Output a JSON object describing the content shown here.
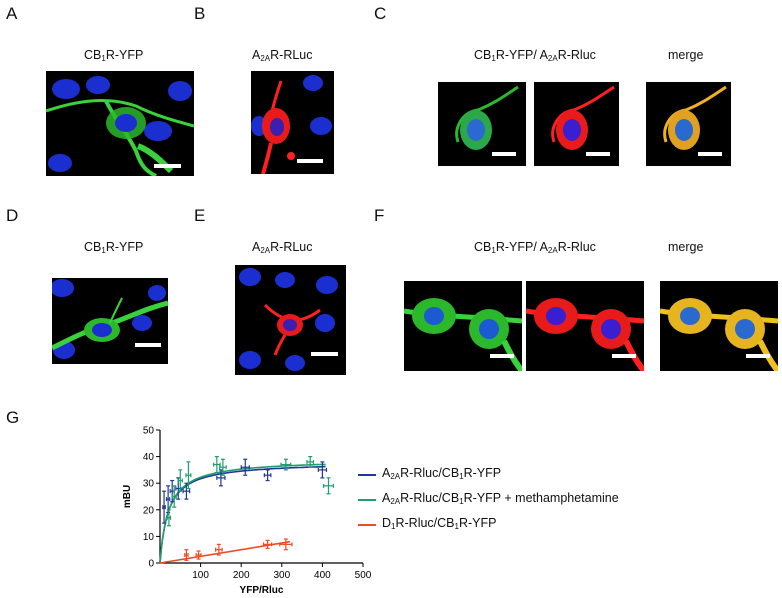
{
  "panels": {
    "A": {
      "letter": "A",
      "label": {
        "pre": "CB",
        "sub": "1",
        "post": "R-YFP"
      }
    },
    "B": {
      "letter": "B",
      "label": {
        "pre": "A",
        "sub": "2A",
        "post": "R-RLuc"
      }
    },
    "C": {
      "letter": "C",
      "label": {
        "pre1": "CB",
        "sub1": "1",
        "mid": "R-YFP/ A",
        "sub2": "2A",
        "post": "R-Rluc"
      },
      "merge": "merge"
    },
    "D": {
      "letter": "D",
      "label": {
        "pre": "CB",
        "sub": "1",
        "post": "R-YFP"
      }
    },
    "E": {
      "letter": "E",
      "label": {
        "pre": "A",
        "sub": "2A",
        "post": "R-RLuc"
      }
    },
    "F": {
      "letter": "F",
      "label": {
        "pre1": "CB",
        "sub1": "1",
        "mid": "R-YFP/ A",
        "sub2": "2A",
        "post": "R-Rluc"
      },
      "merge": "merge"
    },
    "G": {
      "letter": "G"
    }
  },
  "colors": {
    "blue": "#1f3a93",
    "green": "#1f9e6e",
    "red": "#f04a23"
  },
  "chart_data": {
    "type": "scatter",
    "xlabel": "YFP/Rluc",
    "ylabel": "mBU",
    "xlim": [
      0,
      500
    ],
    "ylim": [
      0,
      50
    ],
    "xticks": [
      100,
      200,
      300,
      400,
      500
    ],
    "yticks": [
      0,
      10,
      20,
      30,
      40,
      50
    ],
    "legend_position": "right",
    "series": [
      {
        "legend": {
          "pre1": "A",
          "sub1": "2A",
          "mid": "R-Rluc/CB",
          "sub2": "1",
          "post": "R-YFP"
        },
        "color": "#1f3a93",
        "points": [
          [
            10,
            21
          ],
          [
            20,
            24
          ],
          [
            30,
            27
          ],
          [
            45,
            28
          ],
          [
            65,
            27
          ],
          [
            150,
            32
          ],
          [
            210,
            36
          ],
          [
            265,
            33
          ],
          [
            400,
            35
          ]
        ],
        "xerr": [
          3,
          4,
          5,
          6,
          8,
          10,
          10,
          8,
          10
        ],
        "yerr": [
          6,
          5,
          4,
          4,
          3,
          3,
          3,
          2,
          3
        ],
        "fit": {
          "bmax": 38,
          "kd": 20
        }
      },
      {
        "legend": {
          "pre1": "A",
          "sub1": "2A",
          "mid": "R-Rluc/CB",
          "sub2": "1",
          "post": "R-YFP + methamphetamine"
        },
        "color": "#1f9e6e",
        "points": [
          [
            22,
            17
          ],
          [
            35,
            25
          ],
          [
            50,
            31
          ],
          [
            70,
            33
          ],
          [
            140,
            37
          ],
          [
            155,
            36
          ],
          [
            310,
            37
          ],
          [
            370,
            38
          ],
          [
            415,
            29
          ]
        ],
        "xerr": [
          4,
          5,
          5,
          6,
          8,
          8,
          12,
          8,
          12
        ],
        "yerr": [
          3,
          4,
          4,
          5,
          3,
          3,
          2,
          2,
          3
        ],
        "fit": {
          "bmax": 39,
          "kd": 21
        }
      },
      {
        "legend": {
          "pre1": "D",
          "sub1": "1",
          "mid": "R-Rluc/CB",
          "sub2": "1",
          "post": "R-YFP"
        },
        "color": "#f04a23",
        "points": [
          [
            65,
            3
          ],
          [
            95,
            3
          ],
          [
            145,
            5
          ],
          [
            265,
            7
          ],
          [
            310,
            7
          ]
        ],
        "xerr": [
          4,
          6,
          8,
          10,
          15
        ],
        "yerr": [
          2,
          1.5,
          2,
          1.5,
          2
        ],
        "fit": {
          "slope": 0.025
        }
      }
    ]
  }
}
